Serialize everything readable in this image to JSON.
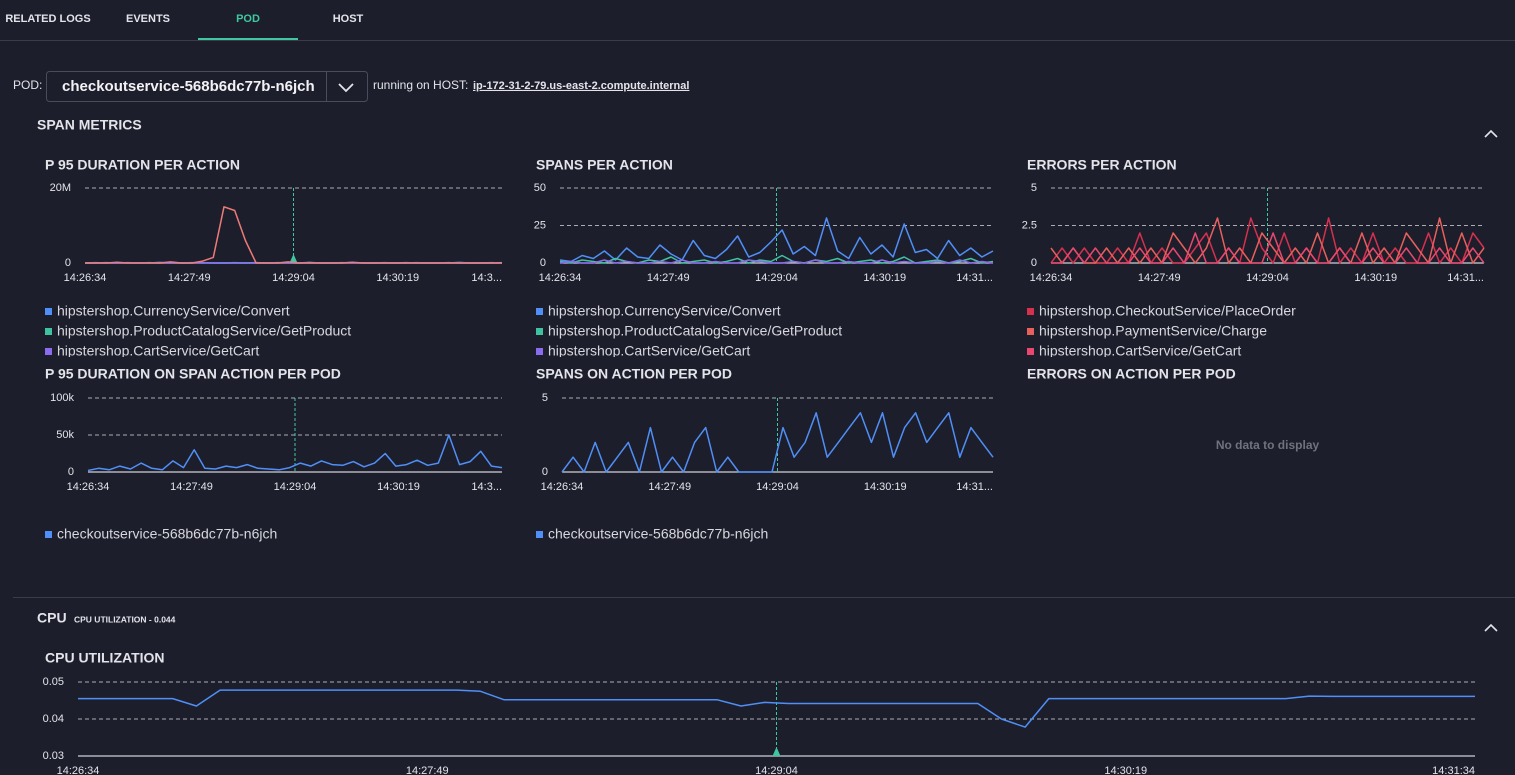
{
  "tabs": [
    "RELATED LOGS",
    "EVENTS",
    "POD",
    "HOST"
  ],
  "pod_label": "POD:",
  "pod": "checkoutservice-568b6dc77b-n6jch",
  "running_on": "running on HOST:",
  "host": "ip-172-31-2-79.us-east-2.compute.internal",
  "span_section": "SPAN METRICS",
  "cpu_section": {
    "title": "CPU",
    "subtitle": "CPU UTILIZATION - 0.044"
  },
  "chart_data": [
    {
      "type": "line",
      "title": "P 95 DURATION PER ACTION",
      "xtick_labels": [
        "14:26:34",
        "14:27:49",
        "14:29:04",
        "14:30:19",
        "14:3..."
      ],
      "ylim": [
        0,
        20000000
      ],
      "yticks": [
        0,
        {
          "value": 20000000,
          "label": "20M"
        }
      ],
      "series": [
        {
          "name": "hipstershop.CurrencyService/Convert",
          "color": "#4f8ff7",
          "values": [
            0,
            100000,
            0,
            0,
            100000,
            0,
            0,
            150000,
            0,
            0,
            100000,
            0,
            0,
            0,
            100000,
            0,
            0,
            0,
            100000,
            0,
            0,
            150000,
            0,
            0,
            100000,
            0,
            0,
            0,
            100000,
            0,
            0,
            100000,
            0,
            0,
            0,
            150000,
            0,
            0,
            100000,
            0
          ]
        },
        {
          "name": "hipstershop.ProductCatalogService/GetProduct",
          "color": "#3fc2a0",
          "values": [
            0,
            0,
            100000,
            0,
            0,
            0,
            100000,
            0,
            0,
            0,
            0,
            100000,
            0,
            0,
            0,
            0,
            100000,
            0,
            0,
            0,
            0,
            100000,
            0,
            0,
            0,
            100000,
            0,
            0,
            0,
            0,
            100000,
            0,
            0,
            0,
            100000,
            0,
            0,
            0,
            0,
            100000
          ]
        },
        {
          "name": "hipstershop.CartService/GetCart",
          "color": "#8b6cf0",
          "values": [
            0,
            0,
            0,
            0,
            0,
            50000,
            0,
            0,
            0,
            0,
            0,
            0,
            50000,
            0,
            0,
            0,
            0,
            0,
            0,
            50000,
            0,
            0,
            0,
            0,
            0,
            0,
            50000,
            0,
            0,
            0,
            0,
            0,
            0,
            50000,
            0,
            0,
            0,
            0,
            0,
            0
          ]
        },
        {
          "color": "#ee7b78",
          "values": [
            0,
            0,
            0,
            200000,
            0,
            0,
            0,
            0,
            300000,
            0,
            0,
            500000,
            1500000,
            15000000,
            14000000,
            6000000,
            0,
            0,
            0,
            300000,
            0,
            0,
            0,
            0,
            0,
            200000,
            0,
            0,
            0,
            0,
            0,
            0,
            0,
            0,
            0,
            0,
            0,
            0,
            0,
            0
          ]
        }
      ]
    },
    {
      "type": "line",
      "title": "SPANS PER ACTION",
      "xtick_labels": [
        "14:26:34",
        "14:27:49",
        "14:29:04",
        "14:30:19",
        "14:31..."
      ],
      "ylim": [
        0,
        50
      ],
      "yticks": [
        0,
        25,
        50
      ],
      "series": [
        {
          "name": "hipstershop.CurrencyService/Convert",
          "color": "#4f8ff7",
          "values": [
            2,
            1,
            5,
            3,
            8,
            2,
            10,
            4,
            3,
            12,
            6,
            2,
            15,
            5,
            3,
            9,
            18,
            4,
            7,
            14,
            22,
            6,
            11,
            5,
            30,
            8,
            3,
            17,
            6,
            12,
            4,
            26,
            7,
            9,
            3,
            15,
            5,
            10,
            4,
            8
          ]
        },
        {
          "name": "hipstershop.ProductCatalogService/GetProduct",
          "color": "#3fc2a0",
          "values": [
            1,
            0,
            2,
            1,
            0,
            3,
            1,
            0,
            2,
            1,
            4,
            0,
            1,
            2,
            0,
            1,
            3,
            0,
            2,
            1,
            5,
            1,
            0,
            2,
            1,
            3,
            0,
            1,
            2,
            0,
            1,
            4,
            0,
            1,
            2,
            0,
            1,
            3,
            0,
            1
          ]
        },
        {
          "name": "hipstershop.CartService/GetCart",
          "color": "#8b6cf0",
          "values": [
            0,
            1,
            0,
            0,
            2,
            0,
            1,
            0,
            0,
            1,
            0,
            2,
            0,
            0,
            1,
            0,
            0,
            2,
            1,
            0,
            0,
            1,
            0,
            2,
            0,
            0,
            1,
            0,
            0,
            2,
            0,
            1,
            0,
            0,
            1,
            0,
            2,
            0,
            1,
            0
          ]
        }
      ]
    },
    {
      "type": "line",
      "title": "ERRORS PER ACTION",
      "xtick_labels": [
        "14:26:34",
        "14:27:49",
        "14:29:04",
        "14:30:19",
        "14:31..."
      ],
      "ylim": [
        0,
        5
      ],
      "yticks": [
        0,
        2.5,
        5
      ],
      "series": [
        {
          "name": "hipstershop.CheckoutService/PlaceOrder",
          "color": "#d6304f",
          "values": [
            0,
            1,
            0,
            1,
            0,
            0,
            1,
            0,
            2,
            0,
            1,
            0,
            0,
            1,
            2,
            0,
            1,
            0,
            3,
            1,
            0,
            2,
            0,
            1,
            0,
            3,
            0,
            1,
            0,
            2,
            0,
            1,
            0,
            0,
            2,
            0,
            1,
            0,
            2,
            1
          ]
        },
        {
          "name": "hipstershop.PaymentService/Charge",
          "color": "#e8605c",
          "values": [
            1,
            0,
            1,
            0,
            0,
            1,
            0,
            1,
            0,
            1,
            0,
            2,
            1,
            0,
            1,
            3,
            0,
            1,
            0,
            2,
            1,
            0,
            1,
            0,
            2,
            0,
            1,
            0,
            2,
            0,
            1,
            0,
            2,
            1,
            0,
            3,
            0,
            2,
            0,
            1
          ]
        },
        {
          "name": "hipstershop.CartService/GetCart",
          "color": "#e8486f",
          "values": [
            0,
            0,
            1,
            0,
            1,
            0,
            0,
            0,
            1,
            0,
            0,
            1,
            0,
            2,
            0,
            0,
            1,
            0,
            0,
            0,
            2,
            0,
            0,
            1,
            0,
            0,
            1,
            0,
            0,
            1,
            0,
            0,
            1,
            0,
            0,
            1,
            0,
            0,
            1,
            0
          ]
        }
      ]
    },
    {
      "type": "line",
      "title": "P 95 DURATION ON SPAN ACTION PER POD",
      "xtick_labels": [
        "14:26:34",
        "14:27:49",
        "14:29:04",
        "14:30:19",
        "14:3..."
      ],
      "ylim": [
        0,
        100000
      ],
      "yticks": [
        0,
        {
          "value": 50000,
          "label": "50k"
        },
        {
          "value": 100000,
          "label": "100k"
        }
      ],
      "series": [
        {
          "name": "checkoutservice-568b6dc77b-n6jch",
          "color": "#4f8ff7",
          "values": [
            2000,
            5000,
            3000,
            8000,
            4000,
            12000,
            5000,
            3000,
            15000,
            6000,
            30000,
            5000,
            4000,
            8000,
            6000,
            10000,
            5000,
            4000,
            3000,
            6000,
            12000,
            8000,
            15000,
            10000,
            9000,
            14000,
            7000,
            12000,
            25000,
            8000,
            10000,
            16000,
            9000,
            12000,
            50000,
            10000,
            14000,
            28000,
            8000,
            6000
          ]
        }
      ]
    },
    {
      "type": "line",
      "title": "SPANS ON ACTION PER POD",
      "xtick_labels": [
        "14:26:34",
        "14:27:49",
        "14:29:04",
        "14:30:19",
        "14:31..."
      ],
      "ylim": [
        0,
        5
      ],
      "yticks": [
        0,
        5
      ],
      "series": [
        {
          "name": "checkoutservice-568b6dc77b-n6jch",
          "color": "#4f8ff7",
          "values": [
            0,
            1,
            0,
            2,
            0,
            1,
            2,
            0,
            3,
            0,
            1,
            0,
            2,
            3,
            0,
            1,
            0,
            0,
            0,
            0,
            3,
            1,
            2,
            4,
            1,
            2,
            3,
            4,
            2,
            4,
            1,
            3,
            4,
            2,
            3,
            4,
            1,
            3,
            2,
            1
          ]
        }
      ]
    },
    {
      "type": "empty",
      "title": "ERRORS ON ACTION PER POD",
      "empty_text": "No data to display"
    },
    {
      "type": "line",
      "title": "CPU UTILIZATION",
      "xtick_labels": [
        "14:26:34",
        "14:27:49",
        "14:29:04",
        "14:30:19",
        "14:31:34"
      ],
      "ylim": [
        0.03,
        0.05
      ],
      "yticks": [
        0.03,
        0.04,
        0.05
      ],
      "series": [
        {
          "color": "#4f8ff7",
          "values": [
            0.0455,
            0.0455,
            0.0455,
            0.0455,
            0.0455,
            0.0435,
            0.0478,
            0.0478,
            0.0478,
            0.0478,
            0.0478,
            0.0478,
            0.0478,
            0.0478,
            0.0478,
            0.0478,
            0.0478,
            0.0475,
            0.0452,
            0.0452,
            0.0452,
            0.0452,
            0.0452,
            0.0452,
            0.0452,
            0.0452,
            0.0452,
            0.0452,
            0.0435,
            0.0445,
            0.0442,
            0.0442,
            0.0442,
            0.0442,
            0.0442,
            0.0442,
            0.0442,
            0.0442,
            0.0442,
            0.04,
            0.0378,
            0.0455,
            0.0455,
            0.0455,
            0.0455,
            0.0455,
            0.0455,
            0.0455,
            0.0455,
            0.0455,
            0.0455,
            0.0455,
            0.0462,
            0.0461,
            0.0461,
            0.0461,
            0.0461,
            0.0461,
            0.0461,
            0.0461
          ]
        }
      ]
    }
  ]
}
